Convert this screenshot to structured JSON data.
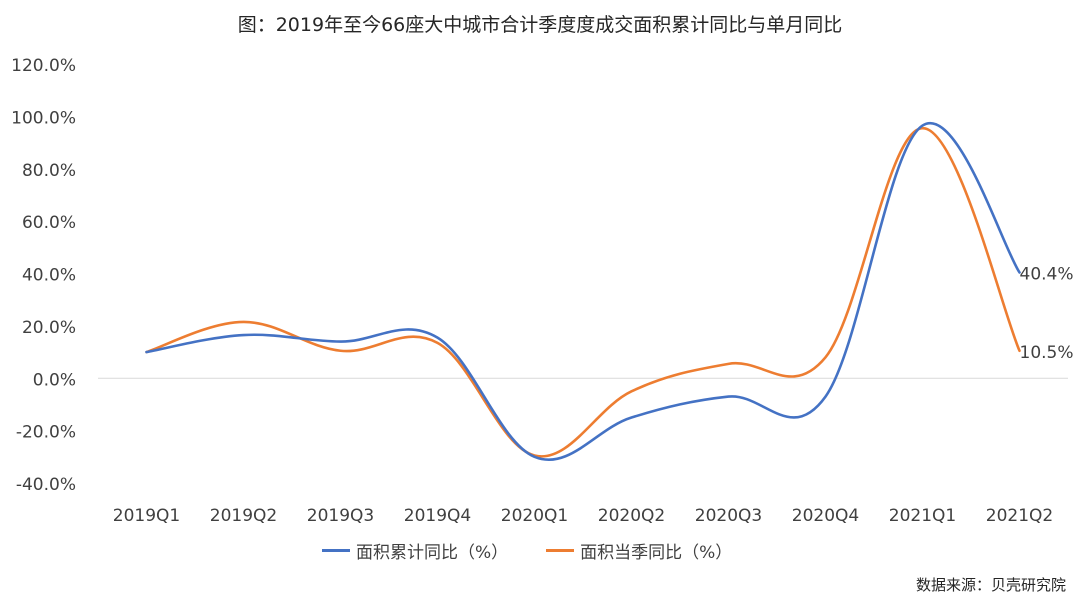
{
  "title": "图：2019年至今66座大中城市合计季度度成交面积累计同比与单月同比",
  "source": "数据来源：贝壳研究院",
  "colors": {
    "series1": "#4472C4",
    "series2": "#ED7D31",
    "axis": "#D9D9D9",
    "text": "#404040"
  },
  "chart_data": {
    "type": "line",
    "title": "图：2019年至今66座大中城市合计季度度成交面积累计同比与单月同比",
    "xlabel": "",
    "ylabel": "",
    "ylim": [
      -40,
      120
    ],
    "y_ticks": [
      -40,
      -20,
      0,
      20,
      40,
      60,
      80,
      100,
      120
    ],
    "y_tick_labels": [
      "-40.0%",
      "-20.0%",
      "0.0%",
      "20.0%",
      "40.0%",
      "60.0%",
      "80.0%",
      "100.0%",
      "120.0%"
    ],
    "categories": [
      "2019Q1",
      "2019Q2",
      "2019Q3",
      "2019Q4",
      "2020Q1",
      "2020Q2",
      "2020Q3",
      "2020Q4",
      "2021Q1",
      "2021Q2"
    ],
    "series": [
      {
        "name": "面积累计同比（%）",
        "values": [
          10.0,
          16.5,
          14.0,
          15.5,
          -30.0,
          -15.0,
          -7.0,
          -7.0,
          96.5,
          40.4
        ],
        "end_label": "40.4%"
      },
      {
        "name": "面积当季同比（%）",
        "values": [
          10.0,
          21.5,
          10.5,
          13.5,
          -29.5,
          -5.0,
          5.5,
          8.0,
          95.5,
          10.5
        ],
        "end_label": "10.5%"
      }
    ],
    "legend_position": "bottom",
    "grid": false,
    "smooth": true
  }
}
